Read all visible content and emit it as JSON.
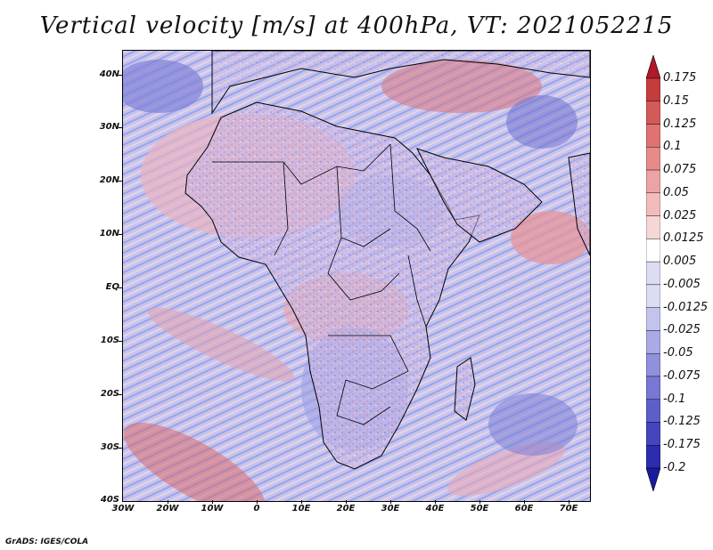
{
  "title": "Vertical velocity [m/s] at 400hPa, VT: 2021052215",
  "credit": "GrADS: IGES/COLA",
  "lat_labels": [
    "40N",
    "30N",
    "20N",
    "10N",
    "EQ",
    "10S",
    "20S",
    "30S",
    "40S"
  ],
  "lon_labels": [
    "30W",
    "20W",
    "10W",
    "0",
    "10E",
    "20E",
    "30E",
    "40E",
    "50E",
    "60E",
    "70E"
  ],
  "colorbar": {
    "labels": [
      "0.175",
      "0.15",
      "0.125",
      "0.1",
      "0.075",
      "0.05",
      "0.025",
      "0.0125",
      "0.005",
      "-0.005",
      "-0.0125",
      "-0.025",
      "-0.05",
      "-0.075",
      "-0.1",
      "-0.125",
      "-0.175",
      "-0.2"
    ],
    "colors": [
      "#b2182b",
      "#c43c3c",
      "#d45a5a",
      "#e07272",
      "#e68a8a",
      "#eca3a3",
      "#f2bcbc",
      "#f7d6d6",
      "#ffffff",
      "#dcdcf5",
      "#c3c3ee",
      "#aaaae6",
      "#9090dd",
      "#7777d4",
      "#5e5ec9",
      "#4545bd",
      "#2c2cae",
      "#1a1a9e"
    ]
  },
  "field": {
    "positive_color": "#e8908f",
    "negative_color": "#8a8ae0",
    "background_color": "#c9cbf0"
  }
}
